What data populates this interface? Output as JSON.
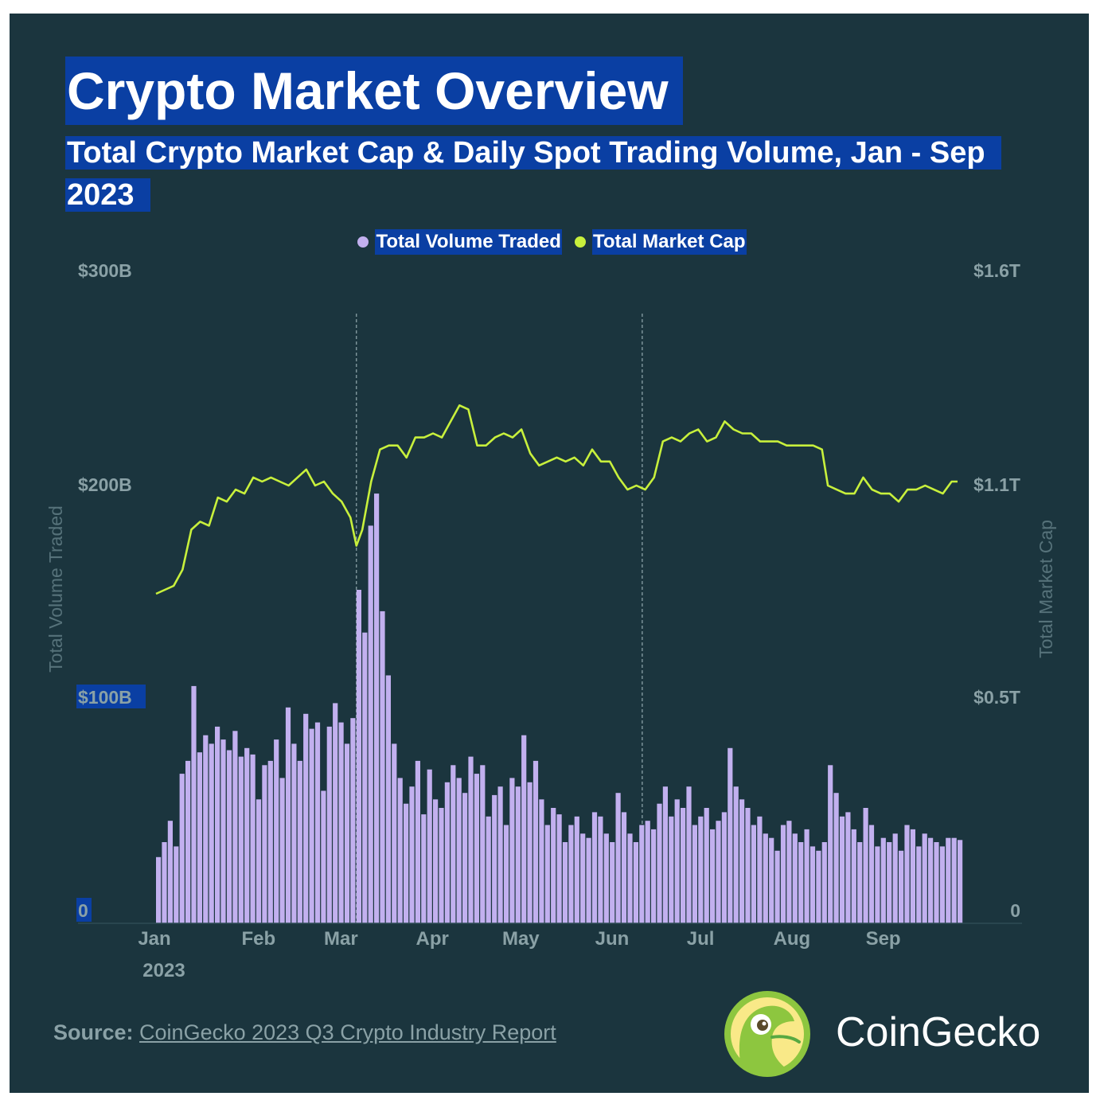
{
  "title": "Crypto Market Overview",
  "subtitle": "Total Crypto Market Cap & Daily Spot Trading Volume, Jan - Sep 2023",
  "source_label": "Source:",
  "source_link": "CoinGecko 2023 Q3 Crypto Industry Report",
  "brand": "CoinGecko",
  "colors": {
    "background": "#1b353e",
    "highlight": "#0a3fa3",
    "volume": "#c2b0ef",
    "market_cap": "#c8f03c",
    "axis_text": "#8aa1a6"
  },
  "chart_data": {
    "type": "bar+line",
    "title": "Crypto Market Overview",
    "subtitle": "Total Crypto Market Cap & Daily Spot Trading Volume, Jan - Sep 2023",
    "legend": [
      "Total Volume Traded",
      "Total Market Cap"
    ],
    "legend_position": "top-center",
    "y_left": {
      "label": "Total Volume Traded",
      "ticks": [
        "0",
        "$100B",
        "$200B",
        "$300B"
      ],
      "range_billion_usd": [
        0,
        300
      ]
    },
    "y_right": {
      "label": "Total Market Cap",
      "ticks": [
        "0",
        "$0.5T",
        "$1.1T",
        "$1.6T"
      ],
      "range_trillion_usd": [
        0,
        1.6
      ]
    },
    "x_ticks": [
      "Jan",
      "Feb",
      "Mar",
      "Apr",
      "May",
      "Jun",
      "Jul",
      "Aug",
      "Sep"
    ],
    "x_year_label": "2023",
    "reference_lines": [
      "2023-03-10",
      "2023-06-15"
    ],
    "volume_series": {
      "name": "Total Volume Traded",
      "unit": "billion USD",
      "points": [
        [
          "2023-01-01",
          25
        ],
        [
          "2023-01-03",
          32
        ],
        [
          "2023-01-05",
          42
        ],
        [
          "2023-01-07",
          30
        ],
        [
          "2023-01-09",
          64
        ],
        [
          "2023-01-11",
          70
        ],
        [
          "2023-01-13",
          105
        ],
        [
          "2023-01-15",
          74
        ],
        [
          "2023-01-17",
          82
        ],
        [
          "2023-01-19",
          78
        ],
        [
          "2023-01-21",
          86
        ],
        [
          "2023-01-23",
          80
        ],
        [
          "2023-01-25",
          75
        ],
        [
          "2023-01-27",
          84
        ],
        [
          "2023-01-29",
          72
        ],
        [
          "2023-01-31",
          76
        ],
        [
          "2023-02-02",
          73
        ],
        [
          "2023-02-04",
          52
        ],
        [
          "2023-02-06",
          68
        ],
        [
          "2023-02-08",
          70
        ],
        [
          "2023-02-10",
          80
        ],
        [
          "2023-02-12",
          62
        ],
        [
          "2023-02-14",
          95
        ],
        [
          "2023-02-16",
          78
        ],
        [
          "2023-02-18",
          70
        ],
        [
          "2023-02-20",
          92
        ],
        [
          "2023-02-22",
          85
        ],
        [
          "2023-02-24",
          88
        ],
        [
          "2023-02-26",
          56
        ],
        [
          "2023-02-28",
          86
        ],
        [
          "2023-03-02",
          97
        ],
        [
          "2023-03-04",
          88
        ],
        [
          "2023-03-06",
          78
        ],
        [
          "2023-03-08",
          90
        ],
        [
          "2023-03-10",
          150
        ],
        [
          "2023-03-12",
          130
        ],
        [
          "2023-03-14",
          180
        ],
        [
          "2023-03-16",
          195
        ],
        [
          "2023-03-18",
          140
        ],
        [
          "2023-03-20",
          110
        ],
        [
          "2023-03-22",
          78
        ],
        [
          "2023-03-24",
          62
        ],
        [
          "2023-03-26",
          50
        ],
        [
          "2023-03-28",
          58
        ],
        [
          "2023-03-30",
          70
        ],
        [
          "2023-04-01",
          45
        ],
        [
          "2023-04-03",
          66
        ],
        [
          "2023-04-05",
          52
        ],
        [
          "2023-04-07",
          48
        ],
        [
          "2023-04-09",
          60
        ],
        [
          "2023-04-11",
          68
        ],
        [
          "2023-04-13",
          62
        ],
        [
          "2023-04-15",
          55
        ],
        [
          "2023-04-17",
          72
        ],
        [
          "2023-04-19",
          64
        ],
        [
          "2023-04-21",
          68
        ],
        [
          "2023-04-23",
          44
        ],
        [
          "2023-04-25",
          54
        ],
        [
          "2023-04-27",
          58
        ],
        [
          "2023-04-29",
          40
        ],
        [
          "2023-05-01",
          62
        ],
        [
          "2023-05-03",
          58
        ],
        [
          "2023-05-05",
          82
        ],
        [
          "2023-05-07",
          60
        ],
        [
          "2023-05-09",
          70
        ],
        [
          "2023-05-11",
          52
        ],
        [
          "2023-05-13",
          40
        ],
        [
          "2023-05-15",
          48
        ],
        [
          "2023-05-17",
          45
        ],
        [
          "2023-05-19",
          32
        ],
        [
          "2023-05-21",
          40
        ],
        [
          "2023-05-23",
          44
        ],
        [
          "2023-05-25",
          36
        ],
        [
          "2023-05-27",
          34
        ],
        [
          "2023-05-29",
          46
        ],
        [
          "2023-05-31",
          44
        ],
        [
          "2023-06-02",
          36
        ],
        [
          "2023-06-04",
          32
        ],
        [
          "2023-06-06",
          55
        ],
        [
          "2023-06-08",
          46
        ],
        [
          "2023-06-10",
          36
        ],
        [
          "2023-06-12",
          32
        ],
        [
          "2023-06-14",
          40
        ],
        [
          "2023-06-16",
          42
        ],
        [
          "2023-06-18",
          38
        ],
        [
          "2023-06-20",
          50
        ],
        [
          "2023-06-22",
          58
        ],
        [
          "2023-06-24",
          44
        ],
        [
          "2023-06-26",
          52
        ],
        [
          "2023-06-28",
          48
        ],
        [
          "2023-06-30",
          58
        ],
        [
          "2023-07-02",
          40
        ],
        [
          "2023-07-04",
          44
        ],
        [
          "2023-07-06",
          48
        ],
        [
          "2023-07-08",
          38
        ],
        [
          "2023-07-10",
          42
        ],
        [
          "2023-07-12",
          46
        ],
        [
          "2023-07-14",
          76
        ],
        [
          "2023-07-16",
          58
        ],
        [
          "2023-07-18",
          52
        ],
        [
          "2023-07-20",
          48
        ],
        [
          "2023-07-22",
          40
        ],
        [
          "2023-07-24",
          44
        ],
        [
          "2023-07-26",
          36
        ],
        [
          "2023-07-28",
          34
        ],
        [
          "2023-07-30",
          28
        ],
        [
          "2023-08-01",
          40
        ],
        [
          "2023-08-03",
          42
        ],
        [
          "2023-08-05",
          36
        ],
        [
          "2023-08-07",
          32
        ],
        [
          "2023-08-09",
          38
        ],
        [
          "2023-08-11",
          30
        ],
        [
          "2023-08-13",
          28
        ],
        [
          "2023-08-15",
          32
        ],
        [
          "2023-08-17",
          68
        ],
        [
          "2023-08-19",
          55
        ],
        [
          "2023-08-21",
          44
        ],
        [
          "2023-08-23",
          46
        ],
        [
          "2023-08-25",
          38
        ],
        [
          "2023-08-27",
          32
        ],
        [
          "2023-08-29",
          48
        ],
        [
          "2023-08-31",
          40
        ],
        [
          "2023-09-02",
          30
        ],
        [
          "2023-09-04",
          34
        ],
        [
          "2023-09-06",
          32
        ],
        [
          "2023-09-08",
          36
        ],
        [
          "2023-09-10",
          28
        ],
        [
          "2023-09-12",
          40
        ],
        [
          "2023-09-14",
          38
        ],
        [
          "2023-09-16",
          30
        ],
        [
          "2023-09-18",
          36
        ],
        [
          "2023-09-20",
          34
        ],
        [
          "2023-09-22",
          32
        ],
        [
          "2023-09-24",
          30
        ],
        [
          "2023-09-26",
          34
        ],
        [
          "2023-09-28",
          34
        ],
        [
          "2023-09-30",
          33
        ]
      ]
    },
    "market_cap_series": {
      "name": "Total Market Cap",
      "unit": "trillion USD",
      "points": [
        [
          "2023-01-01",
          0.79
        ],
        [
          "2023-01-04",
          0.8
        ],
        [
          "2023-01-07",
          0.81
        ],
        [
          "2023-01-10",
          0.85
        ],
        [
          "2023-01-13",
          0.95
        ],
        [
          "2023-01-16",
          0.97
        ],
        [
          "2023-01-19",
          0.96
        ],
        [
          "2023-01-22",
          1.03
        ],
        [
          "2023-01-25",
          1.02
        ],
        [
          "2023-01-28",
          1.05
        ],
        [
          "2023-01-31",
          1.04
        ],
        [
          "2023-02-03",
          1.08
        ],
        [
          "2023-02-06",
          1.07
        ],
        [
          "2023-02-09",
          1.08
        ],
        [
          "2023-02-12",
          1.07
        ],
        [
          "2023-02-15",
          1.06
        ],
        [
          "2023-02-18",
          1.08
        ],
        [
          "2023-02-21",
          1.1
        ],
        [
          "2023-02-24",
          1.06
        ],
        [
          "2023-02-27",
          1.07
        ],
        [
          "2023-03-02",
          1.04
        ],
        [
          "2023-03-05",
          1.02
        ],
        [
          "2023-03-08",
          0.98
        ],
        [
          "2023-03-10",
          0.91
        ],
        [
          "2023-03-12",
          0.95
        ],
        [
          "2023-03-15",
          1.07
        ],
        [
          "2023-03-18",
          1.15
        ],
        [
          "2023-03-21",
          1.16
        ],
        [
          "2023-03-24",
          1.16
        ],
        [
          "2023-03-27",
          1.13
        ],
        [
          "2023-03-30",
          1.18
        ],
        [
          "2023-04-02",
          1.18
        ],
        [
          "2023-04-05",
          1.19
        ],
        [
          "2023-04-08",
          1.18
        ],
        [
          "2023-04-11",
          1.22
        ],
        [
          "2023-04-14",
          1.26
        ],
        [
          "2023-04-17",
          1.25
        ],
        [
          "2023-04-20",
          1.16
        ],
        [
          "2023-04-23",
          1.16
        ],
        [
          "2023-04-26",
          1.18
        ],
        [
          "2023-04-29",
          1.19
        ],
        [
          "2023-05-02",
          1.18
        ],
        [
          "2023-05-05",
          1.2
        ],
        [
          "2023-05-08",
          1.14
        ],
        [
          "2023-05-11",
          1.11
        ],
        [
          "2023-05-14",
          1.12
        ],
        [
          "2023-05-17",
          1.13
        ],
        [
          "2023-05-20",
          1.12
        ],
        [
          "2023-05-23",
          1.13
        ],
        [
          "2023-05-26",
          1.11
        ],
        [
          "2023-05-29",
          1.15
        ],
        [
          "2023-06-01",
          1.12
        ],
        [
          "2023-06-04",
          1.12
        ],
        [
          "2023-06-07",
          1.08
        ],
        [
          "2023-06-10",
          1.05
        ],
        [
          "2023-06-13",
          1.06
        ],
        [
          "2023-06-16",
          1.05
        ],
        [
          "2023-06-19",
          1.08
        ],
        [
          "2023-06-22",
          1.17
        ],
        [
          "2023-06-25",
          1.18
        ],
        [
          "2023-06-28",
          1.17
        ],
        [
          "2023-07-01",
          1.19
        ],
        [
          "2023-07-04",
          1.2
        ],
        [
          "2023-07-07",
          1.17
        ],
        [
          "2023-07-10",
          1.18
        ],
        [
          "2023-07-13",
          1.22
        ],
        [
          "2023-07-16",
          1.2
        ],
        [
          "2023-07-19",
          1.19
        ],
        [
          "2023-07-22",
          1.19
        ],
        [
          "2023-07-25",
          1.17
        ],
        [
          "2023-07-28",
          1.17
        ],
        [
          "2023-07-31",
          1.17
        ],
        [
          "2023-08-03",
          1.16
        ],
        [
          "2023-08-06",
          1.16
        ],
        [
          "2023-08-09",
          1.16
        ],
        [
          "2023-08-12",
          1.16
        ],
        [
          "2023-08-15",
          1.15
        ],
        [
          "2023-08-17",
          1.06
        ],
        [
          "2023-08-20",
          1.05
        ],
        [
          "2023-08-23",
          1.04
        ],
        [
          "2023-08-26",
          1.04
        ],
        [
          "2023-08-29",
          1.08
        ],
        [
          "2023-09-01",
          1.05
        ],
        [
          "2023-09-04",
          1.04
        ],
        [
          "2023-09-07",
          1.04
        ],
        [
          "2023-09-10",
          1.02
        ],
        [
          "2023-09-13",
          1.05
        ],
        [
          "2023-09-16",
          1.05
        ],
        [
          "2023-09-19",
          1.06
        ],
        [
          "2023-09-22",
          1.05
        ],
        [
          "2023-09-25",
          1.04
        ],
        [
          "2023-09-28",
          1.07
        ],
        [
          "2023-09-30",
          1.07
        ]
      ]
    }
  }
}
